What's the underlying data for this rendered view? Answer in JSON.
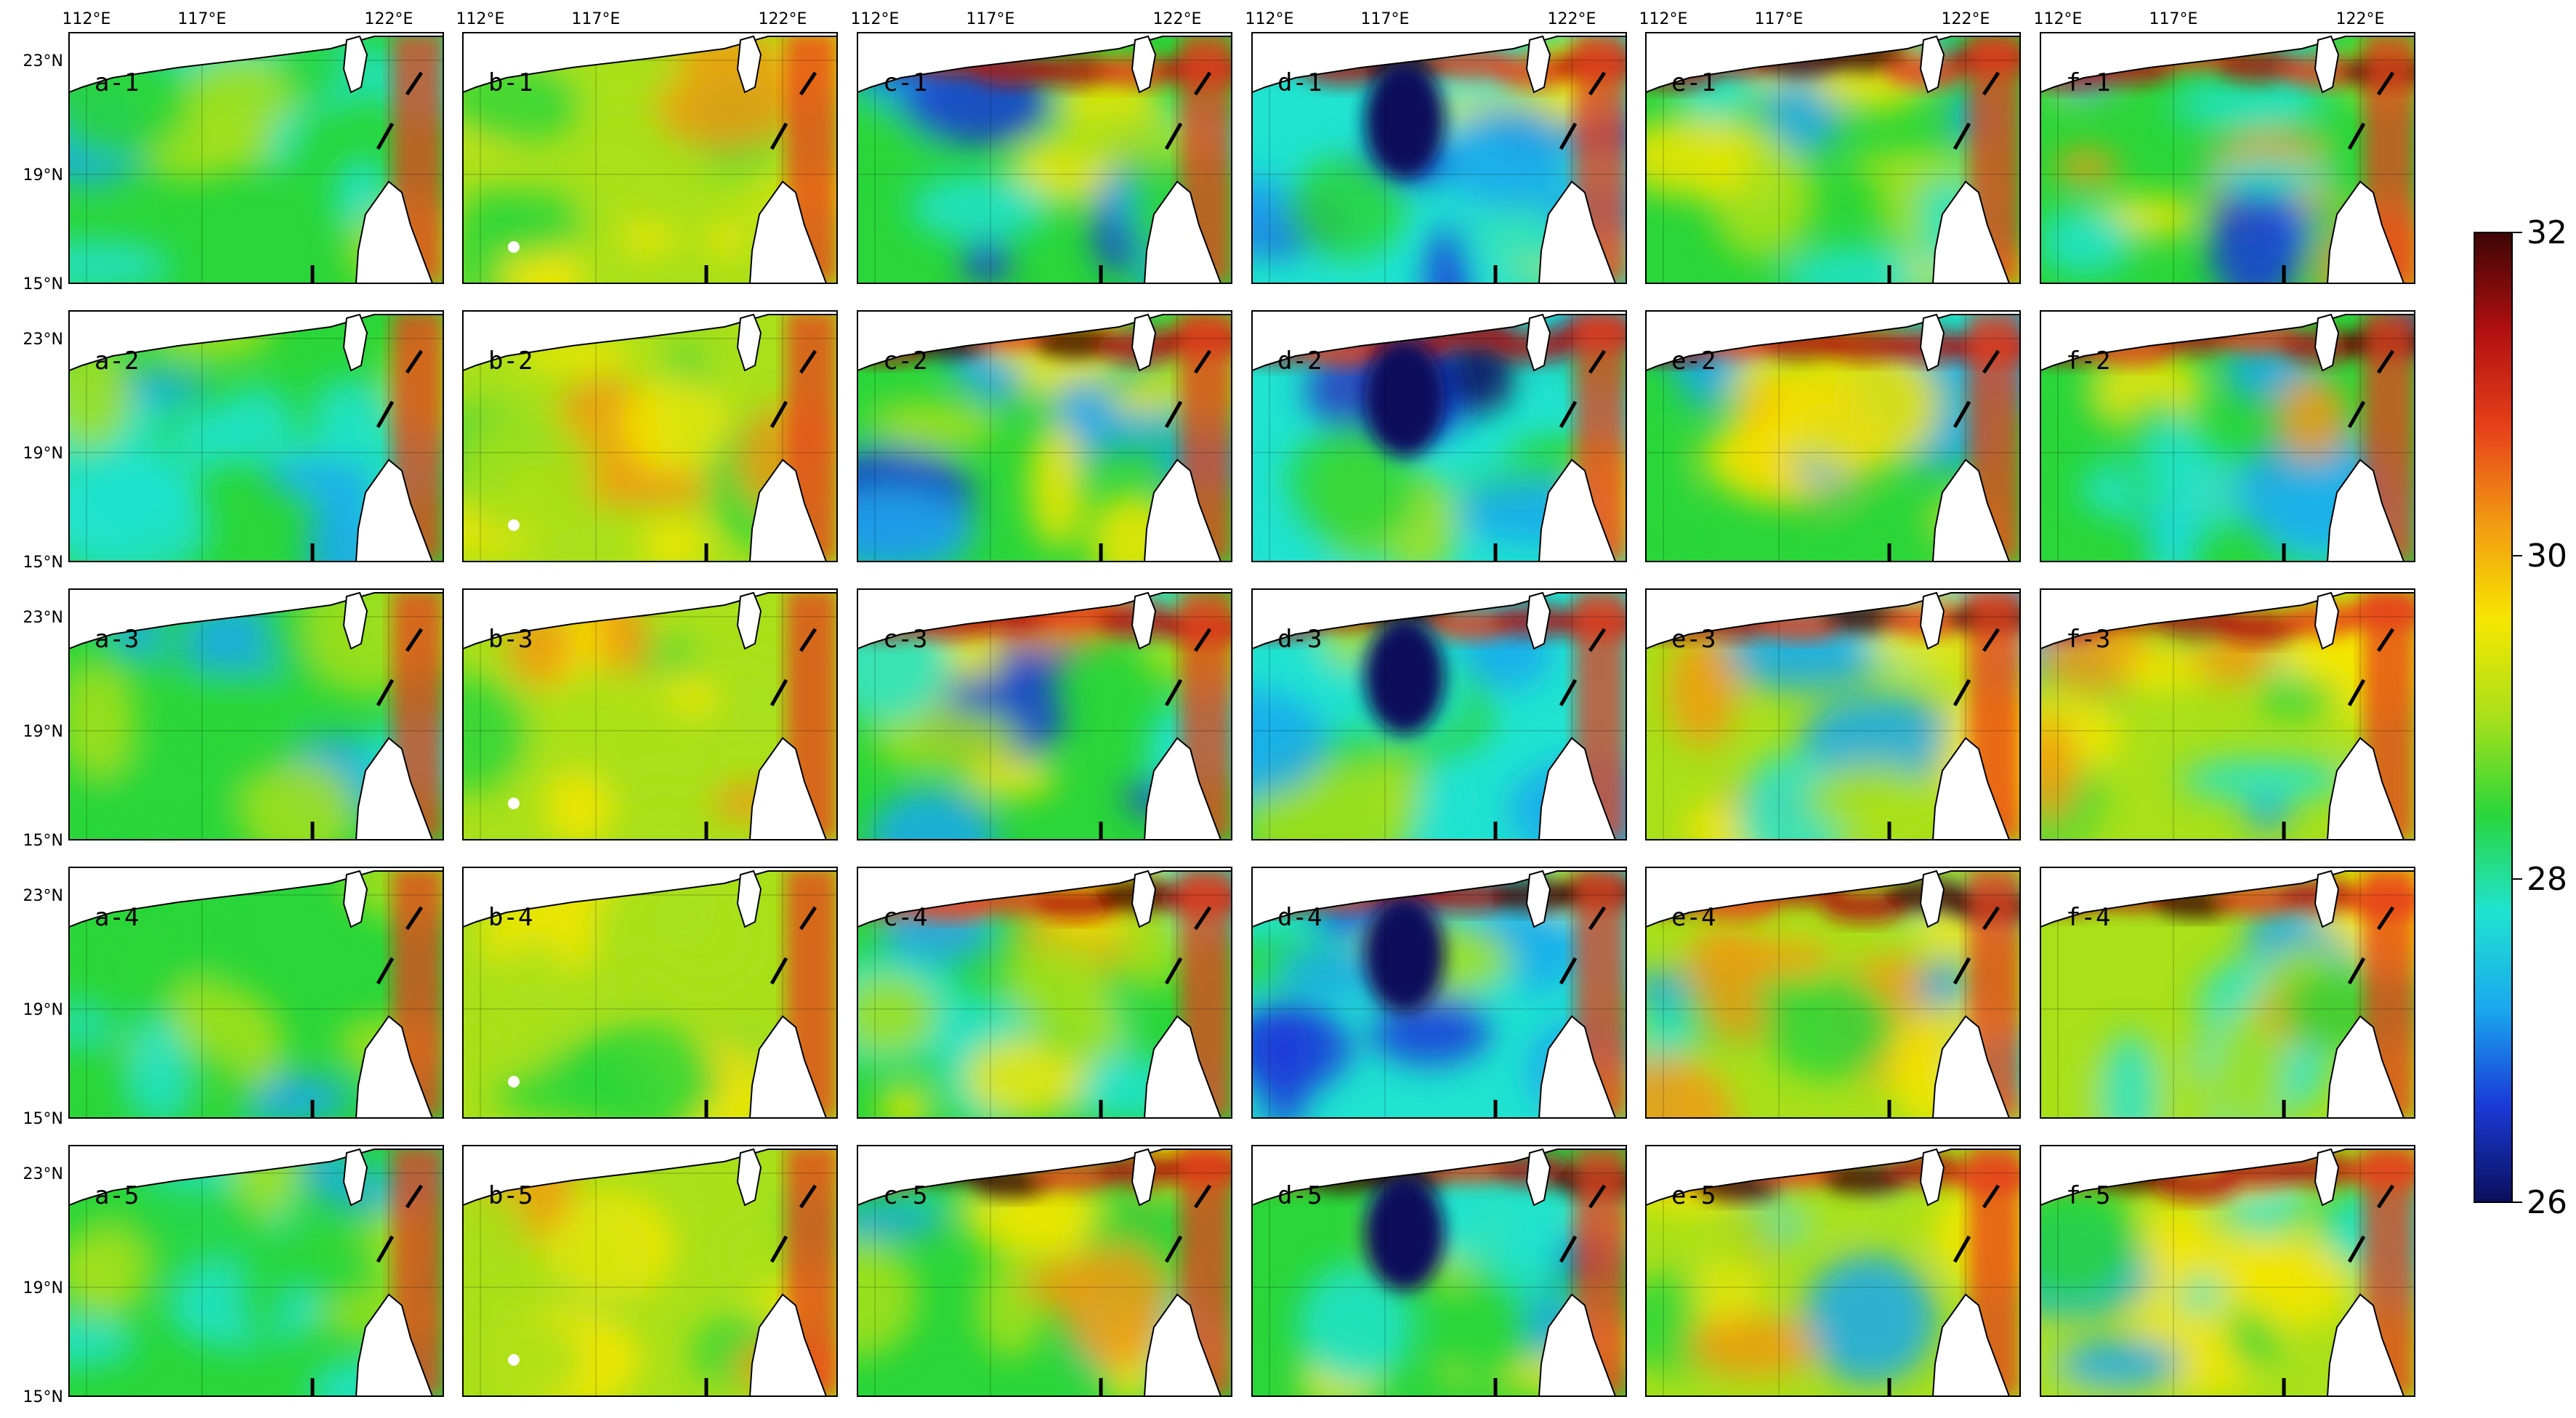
{
  "figure": {
    "lon_ticks": [
      "112°E",
      "117°E",
      "122°E"
    ],
    "lat_ticks": [
      "23°N",
      "19°N",
      "15°N"
    ],
    "columns": [
      "a",
      "b",
      "c",
      "d",
      "e",
      "f"
    ],
    "rows": [
      "1",
      "2",
      "3",
      "4",
      "5"
    ],
    "panels": [
      [
        "a-1",
        "b-1",
        "c-1",
        "d-1",
        "e-1",
        "f-1"
      ],
      [
        "a-2",
        "b-2",
        "c-2",
        "d-2",
        "e-2",
        "f-2"
      ],
      [
        "a-3",
        "b-3",
        "c-3",
        "d-3",
        "e-3",
        "f-3"
      ],
      [
        "a-4",
        "b-4",
        "c-4",
        "d-4",
        "e-4",
        "f-4"
      ],
      [
        "a-5",
        "b-5",
        "c-5",
        "d-5",
        "e-5",
        "f-5"
      ]
    ]
  },
  "colorbar": {
    "ticks": [
      "32",
      "30",
      "28",
      "26"
    ],
    "min": 26,
    "max": 32,
    "colors": [
      "#0a0f5c",
      "#1a3ad8",
      "#1aa8ee",
      "#20e3d0",
      "#2ad63a",
      "#a8e01a",
      "#f6e600",
      "#f29a12",
      "#e6401a",
      "#b00f10",
      "#3d0505"
    ]
  },
  "land_color": "#ffffff",
  "coast_color": "#000000"
}
